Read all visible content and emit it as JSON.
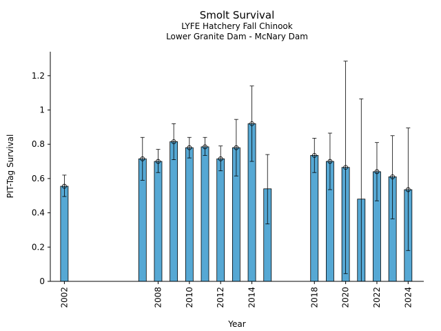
{
  "chart_data": {
    "type": "bar",
    "title": "Smolt Survival",
    "subtitle_lines": [
      "LYFE Hatchery Fall Chinook",
      "Lower Granite Dam - McNary Dam"
    ],
    "xlabel": "Year",
    "ylabel": "PIT-Tag Survival",
    "xlim": [
      2001.1,
      2025.0
    ],
    "ylim": [
      0,
      1.34
    ],
    "x_ticks": [
      2002,
      2008,
      2010,
      2012,
      2014,
      2018,
      2020,
      2022,
      2024
    ],
    "y_ticks": [
      0,
      0.2,
      0.4,
      0.6,
      0.8,
      1,
      1.2
    ],
    "y_tick_labels": [
      "0",
      "0.2",
      "0.4",
      "0.6",
      "0.8",
      "1",
      "1.2"
    ],
    "bar_color": "#56a8d4",
    "grid": false,
    "bars": [
      {
        "year": 2002,
        "value": 0.555,
        "lower": 0.495,
        "upper": 0.62,
        "marker": true
      },
      {
        "year": 2007,
        "value": 0.715,
        "lower": 0.59,
        "upper": 0.84,
        "marker": true
      },
      {
        "year": 2008,
        "value": 0.7,
        "lower": 0.635,
        "upper": 0.77,
        "marker": true
      },
      {
        "year": 2009,
        "value": 0.815,
        "lower": 0.71,
        "upper": 0.92,
        "marker": true
      },
      {
        "year": 2010,
        "value": 0.78,
        "lower": 0.72,
        "upper": 0.84,
        "marker": true
      },
      {
        "year": 2011,
        "value": 0.785,
        "lower": 0.735,
        "upper": 0.84,
        "marker": true
      },
      {
        "year": 2012,
        "value": 0.715,
        "lower": 0.645,
        "upper": 0.79,
        "marker": true
      },
      {
        "year": 2013,
        "value": 0.78,
        "lower": 0.615,
        "upper": 0.945,
        "marker": true
      },
      {
        "year": 2014,
        "value": 0.92,
        "lower": 0.7,
        "upper": 1.14,
        "marker": true
      },
      {
        "year": 2015,
        "value": 0.54,
        "lower": 0.335,
        "upper": 0.74,
        "marker": false
      },
      {
        "year": 2018,
        "value": 0.735,
        "lower": 0.635,
        "upper": 0.835,
        "marker": true
      },
      {
        "year": 2019,
        "value": 0.7,
        "lower": 0.535,
        "upper": 0.865,
        "marker": true
      },
      {
        "year": 2020,
        "value": 0.665,
        "lower": 0.045,
        "upper": 1.285,
        "marker": true
      },
      {
        "year": 2021,
        "value": 0.48,
        "lower": 0.0,
        "upper": 1.065,
        "marker": false
      },
      {
        "year": 2022,
        "value": 0.64,
        "lower": 0.47,
        "upper": 0.81,
        "marker": true
      },
      {
        "year": 2023,
        "value": 0.61,
        "lower": 0.365,
        "upper": 0.85,
        "marker": true
      },
      {
        "year": 2024,
        "value": 0.535,
        "lower": 0.18,
        "upper": 0.895,
        "marker": true
      }
    ]
  }
}
